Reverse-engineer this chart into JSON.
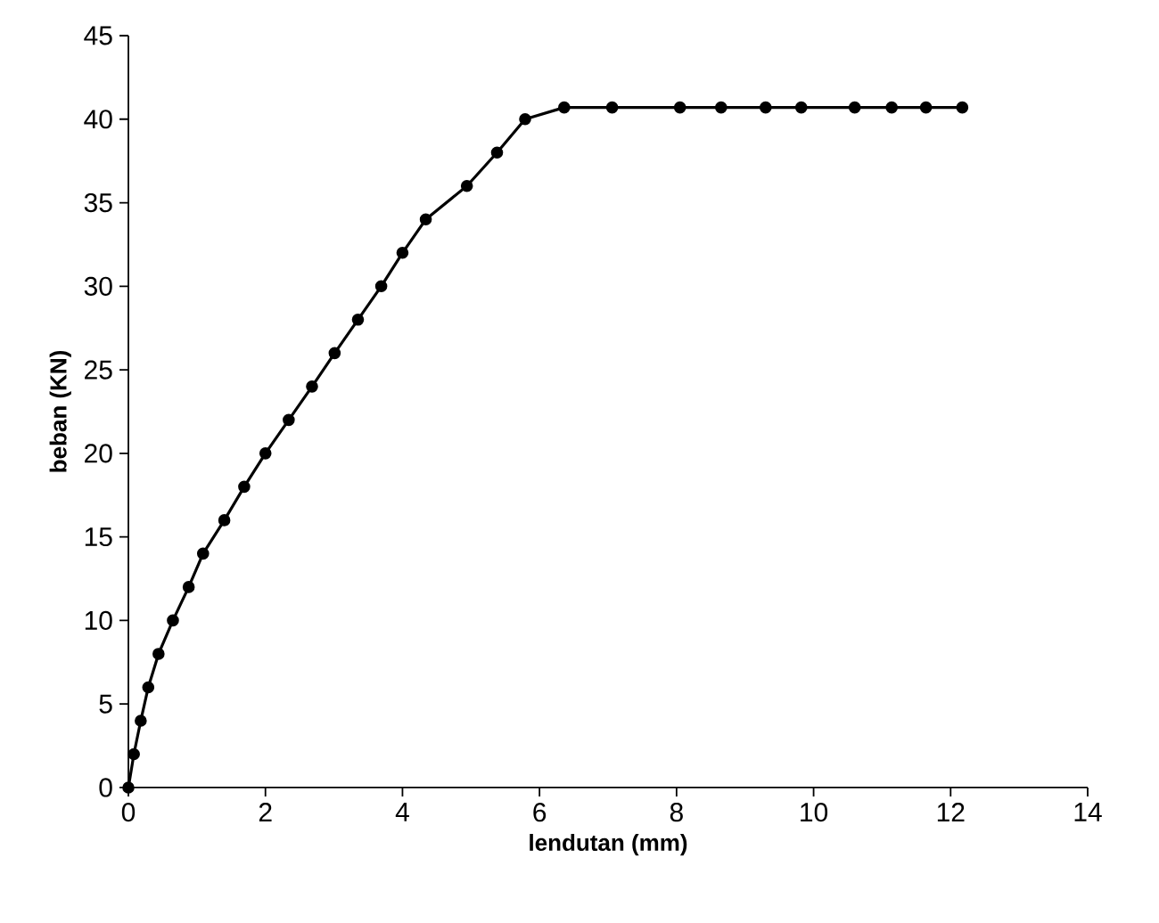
{
  "chart_data": {
    "type": "line",
    "xlabel": "lendutan (mm)",
    "ylabel": "beban (KN)",
    "series": [
      {
        "color": "#000000",
        "x": [
          0,
          0.08,
          0.18,
          0.29,
          0.44,
          0.65,
          0.88,
          1.09,
          1.4,
          1.69,
          2.0,
          2.34,
          2.68,
          3.01,
          3.35,
          3.69,
          4.0,
          4.34,
          4.94,
          5.38,
          5.79,
          6.36,
          7.06,
          8.05,
          8.65,
          9.3,
          9.82,
          10.6,
          11.14,
          11.64,
          12.17
        ],
        "values": [
          0,
          2,
          4,
          6,
          8,
          10,
          12,
          14,
          16,
          18,
          20,
          22,
          24,
          26,
          28,
          30,
          32,
          34,
          36,
          38,
          40,
          40.7,
          40.7,
          40.7,
          40.7,
          40.7,
          40.7,
          40.7,
          40.7,
          40.7,
          40.7
        ]
      }
    ],
    "xlim": [
      0,
      14
    ],
    "ylim": [
      0,
      45
    ],
    "xticks": [
      0,
      2,
      4,
      6,
      8,
      10,
      12,
      14
    ],
    "yticks": [
      0,
      5,
      10,
      15,
      20,
      25,
      30,
      35,
      40,
      45
    ],
    "marker": "circle",
    "line_style": "solid",
    "grid": false
  }
}
